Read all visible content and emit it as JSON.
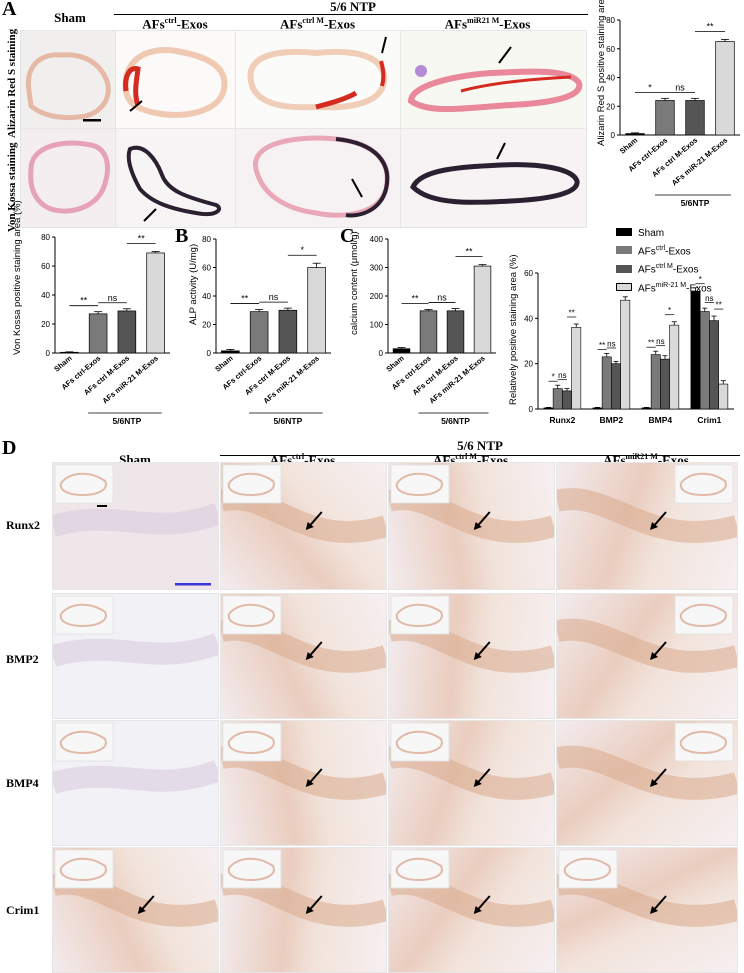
{
  "panels": {
    "A": "A",
    "B": "B",
    "C": "C",
    "D": "D"
  },
  "groups": {
    "sham": "Sham",
    "ntp": "5/6 NTP",
    "ctrl_base": "AFs",
    "ctrl_sup": "ctrl",
    "ctrlm_sup": "ctrl M",
    "mir_sup": "miR21 M",
    "exos": "-Exos",
    "ntp_short": "5/6NTP"
  },
  "row_labels": {
    "alizarin": "Alizarin Red S staining",
    "vonkossa": "Von Kossa staining",
    "runx2": "Runx2",
    "bmp2": "BMP2",
    "bmp4": "BMP4",
    "crim1": "Crim1"
  },
  "legend": {
    "sham": "Sham",
    "ctrl": "AFs",
    "ctrl_sup": "ctrl",
    "ctrlm_sup": "ctrl M",
    "mir_sup": "miR-21 M",
    "exos": "-Exos"
  },
  "chart_data": [
    {
      "id": "alizarin",
      "type": "bar",
      "ylabel": "Alizarin Red S positive staining area (%)",
      "categories": [
        "Sham",
        "AFs ctrl-Exos",
        "AFs ctrl M-Exos",
        "AFs miR-21 M-Exos"
      ],
      "values": [
        1,
        24,
        24,
        65
      ],
      "errors": [
        0.5,
        1.5,
        1.5,
        1.5
      ],
      "ylim": [
        0,
        80
      ],
      "yticks": [
        0,
        20,
        40,
        60,
        80
      ],
      "significance": [
        "*",
        "ns",
        "**"
      ],
      "group_label": "5/6NTP"
    },
    {
      "id": "vonkossa",
      "type": "bar",
      "ylabel": "Von Kossa positive staining area (%)",
      "categories": [
        "Sham",
        "AFs ctrl-Exos",
        "AFs ctrl M-Exos",
        "AFs miR-21 M-Exos"
      ],
      "values": [
        0.5,
        27,
        29,
        69
      ],
      "errors": [
        0.3,
        1.5,
        1.5,
        1
      ],
      "ylim": [
        0,
        80
      ],
      "yticks": [
        0,
        20,
        40,
        60,
        80
      ],
      "significance": [
        "**",
        "ns",
        "**"
      ],
      "group_label": "5/6NTP"
    },
    {
      "id": "alp",
      "type": "bar",
      "ylabel": "ALP activity (U/mg)",
      "categories": [
        "Sham",
        "AFs ctrl-Exos",
        "AFs ctrl M-Exos",
        "AFs miR-21 M-Exos"
      ],
      "values": [
        1.5,
        29,
        30,
        60
      ],
      "errors": [
        1,
        1.5,
        1.5,
        3
      ],
      "ylim": [
        0,
        80
      ],
      "yticks": [
        0,
        20,
        40,
        60,
        80
      ],
      "significance": [
        "**",
        "ns",
        "*"
      ],
      "group_label": "5/6NTP"
    },
    {
      "id": "calcium",
      "type": "bar",
      "ylabel": "calcium content (μmol/g)",
      "categories": [
        "Sham",
        "AFs ctrl-Exos",
        "AFs ctrl M-Exos",
        "AFs miR-21 M-Exos"
      ],
      "values": [
        15,
        148,
        148,
        305
      ],
      "errors": [
        4,
        5,
        8,
        5
      ],
      "ylim": [
        0,
        400
      ],
      "yticks": [
        0,
        100,
        200,
        300,
        400
      ],
      "significance": [
        "**",
        "ns",
        "**"
      ],
      "group_label": "5/6NTP"
    },
    {
      "id": "ihc",
      "type": "bar",
      "ylabel": "Relatively positive staining area (%)",
      "categories": [
        "Runx2",
        "BMP2",
        "BMP4",
        "Crim1"
      ],
      "series": [
        {
          "name": "Sham",
          "values": [
            0.5,
            0.5,
            0.5,
            52
          ],
          "errors": [
            0.2,
            0.2,
            0.2,
            1.5
          ]
        },
        {
          "name": "AFs ctrl-Exos",
          "values": [
            9,
            23,
            24,
            43
          ],
          "errors": [
            1.5,
            1.5,
            1.5,
            1.5
          ]
        },
        {
          "name": "AFs ctrl M-Exos",
          "values": [
            8,
            20,
            22,
            39
          ],
          "errors": [
            1,
            1,
            1.5,
            2
          ]
        },
        {
          "name": "AFs miR-21 M-Exos",
          "values": [
            36,
            48,
            37,
            11
          ],
          "errors": [
            1.5,
            1.5,
            1.5,
            1.5
          ]
        }
      ],
      "ylim": [
        0,
        60
      ],
      "yticks": [
        0,
        20,
        40,
        60
      ],
      "significance": {
        "Runx2": [
          "*",
          "ns",
          "**"
        ],
        "BMP2": [
          "**",
          "ns",
          "**"
        ],
        "BMP4": [
          "**",
          "ns",
          "*"
        ],
        "Crim1": [
          "*",
          "ns",
          "**"
        ]
      }
    }
  ],
  "colors": {
    "bar_sham": "#000000",
    "bar_ctrl": "#7a7a7a",
    "bar_ctrlm": "#555555",
    "bar_mir": "#d9d9d9",
    "alizarin_stain": "#d42a1f",
    "vonkossa_stain": "#2a2030",
    "tissue_pink": "#e8a8b8",
    "tissue_beige": "#f1dccb",
    "ihc_bg": "#f3ecef",
    "scale_bar_blue": "#3a36d8"
  }
}
